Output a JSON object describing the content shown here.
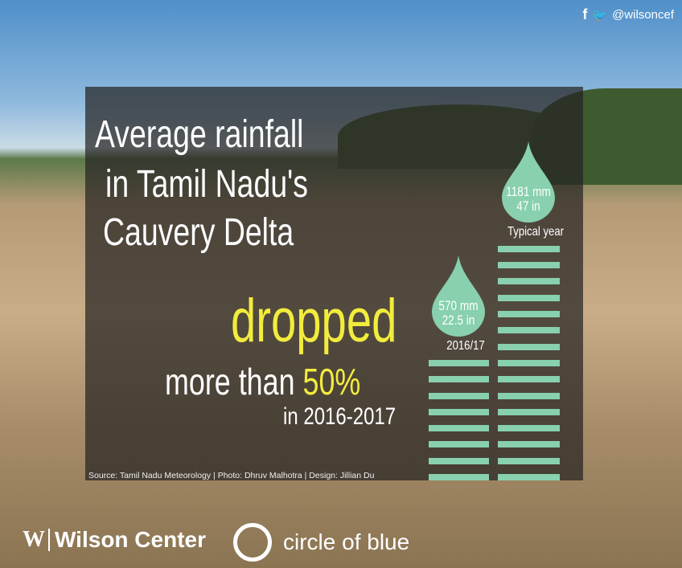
{
  "social": {
    "handle": "@wilsoncef",
    "icons": [
      "facebook-icon",
      "twitter-icon"
    ]
  },
  "headline": {
    "line1": "Average rainfall",
    "line2": "in Tamil Nadu's",
    "line3": "Cauvery Delta",
    "dropped": "dropped",
    "more_than": "more than",
    "percent": "50%",
    "period": "in 2016-2017"
  },
  "source": "Source: Tamil Nadu Meteorology | Photo: Dhruv Malhotra | Design: Jillian Du",
  "logos": {
    "wilson": "Wilson Center",
    "wilson_mark": "W",
    "cob": "circle of blue"
  },
  "colors": {
    "accent": "#88d0ae",
    "highlight": "#f2ec3c"
  },
  "chart_data": {
    "type": "bar",
    "categories": [
      "2016/17",
      "Typical year"
    ],
    "values_mm": [
      570,
      1181
    ],
    "values_in": [
      22.5,
      47
    ],
    "stripes": [
      8,
      15
    ],
    "labels_mm": [
      "570 mm",
      "1181 mm"
    ],
    "labels_in": [
      "22.5 in",
      "47 in"
    ]
  }
}
